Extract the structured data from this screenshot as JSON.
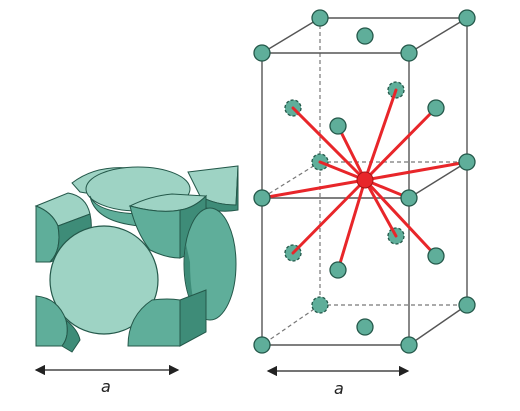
{
  "colors": {
    "atom_fill": "#5fae9a",
    "atom_light": "#9ed3c4",
    "atom_dark": "#3e8c78",
    "atom_stroke": "#24584a",
    "bond": "#e8262a",
    "frame": "#555555",
    "background": "#ffffff"
  },
  "left_figure": {
    "dimension_label": "a"
  },
  "right_figure": {
    "dimension_label": "a"
  }
}
